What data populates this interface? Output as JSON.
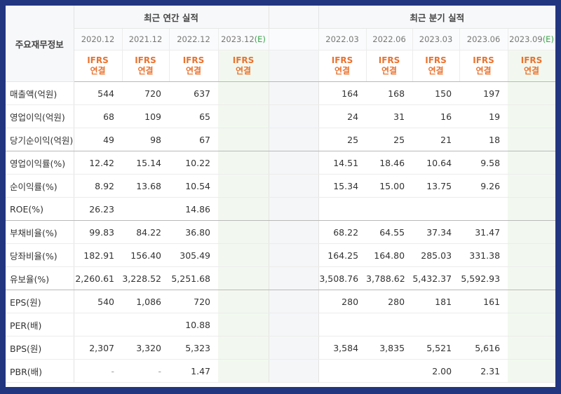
{
  "headers": {
    "label_col": "주요재무정보",
    "annual": "최근 연간 실적",
    "quarterly": "최근 분기 실적",
    "annual_periods": [
      "2020.12",
      "2021.12",
      "2022.12",
      "2023.12"
    ],
    "annual_est_marker": "(E)",
    "quarterly_periods": [
      "2022.03",
      "2022.06",
      "2023.03",
      "2023.06",
      "2023.09"
    ],
    "quarterly_est_marker": "(E)",
    "ifrs_line1": "IFRS",
    "ifrs_line2": "연결"
  },
  "rows": [
    {
      "label": "매출액(억원)",
      "annual": [
        "544",
        "720",
        "637",
        ""
      ],
      "quarterly": [
        "164",
        "168",
        "150",
        "197",
        ""
      ]
    },
    {
      "label": "영업이익(억원)",
      "annual": [
        "68",
        "109",
        "65",
        ""
      ],
      "quarterly": [
        "24",
        "31",
        "16",
        "19",
        ""
      ]
    },
    {
      "label": "당기순이익(억원)",
      "annual": [
        "49",
        "98",
        "67",
        ""
      ],
      "quarterly": [
        "25",
        "25",
        "21",
        "18",
        ""
      ]
    },
    {
      "label": "영업이익률(%)",
      "annual": [
        "12.42",
        "15.14",
        "10.22",
        ""
      ],
      "quarterly": [
        "14.51",
        "18.46",
        "10.64",
        "9.58",
        ""
      ]
    },
    {
      "label": "순이익률(%)",
      "annual": [
        "8.92",
        "13.68",
        "10.54",
        ""
      ],
      "quarterly": [
        "15.34",
        "15.00",
        "13.75",
        "9.26",
        ""
      ]
    },
    {
      "label": "ROE(%)",
      "annual": [
        "26.23",
        "",
        "14.86",
        ""
      ],
      "quarterly": [
        "",
        "",
        "",
        "",
        ""
      ]
    },
    {
      "label": "부채비율(%)",
      "annual": [
        "99.83",
        "84.22",
        "36.80",
        ""
      ],
      "quarterly": [
        "68.22",
        "64.55",
        "37.34",
        "31.47",
        ""
      ]
    },
    {
      "label": "당좌비율(%)",
      "annual": [
        "182.91",
        "156.40",
        "305.49",
        ""
      ],
      "quarterly": [
        "164.25",
        "164.80",
        "285.03",
        "331.38",
        ""
      ]
    },
    {
      "label": "유보율(%)",
      "annual": [
        "2,260.61",
        "3,228.52",
        "5,251.68",
        ""
      ],
      "quarterly": [
        "3,508.76",
        "3,788.62",
        "5,432.37",
        "5,592.93",
        ""
      ]
    },
    {
      "label": "EPS(원)",
      "annual": [
        "540",
        "1,086",
        "720",
        ""
      ],
      "quarterly": [
        "280",
        "280",
        "181",
        "161",
        ""
      ]
    },
    {
      "label": "PER(배)",
      "annual": [
        "",
        "",
        "10.88",
        ""
      ],
      "quarterly": [
        "",
        "",
        "",
        "",
        ""
      ]
    },
    {
      "label": "BPS(원)",
      "annual": [
        "2,307",
        "3,320",
        "5,323",
        ""
      ],
      "quarterly": [
        "3,584",
        "3,835",
        "5,521",
        "5,616",
        ""
      ]
    },
    {
      "label": "PBR(배)",
      "annual": [
        "-",
        "-",
        "1.47",
        ""
      ],
      "quarterly": [
        "",
        "",
        "2.00",
        "2.31",
        ""
      ]
    }
  ]
}
